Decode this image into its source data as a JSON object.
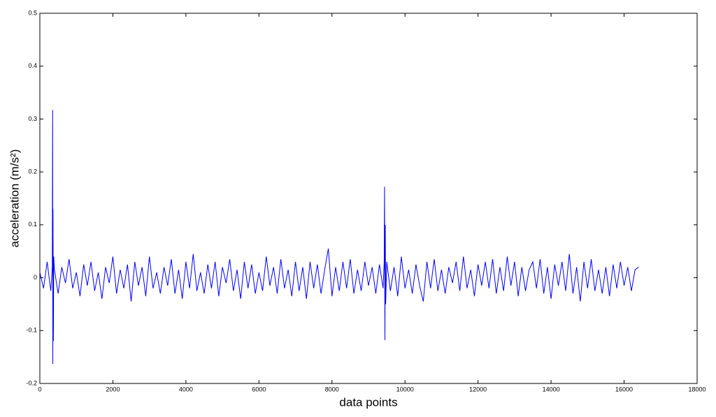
{
  "chart_data": {
    "type": "line",
    "xlabel": "data points",
    "ylabel": "acceleration (m/s²)",
    "xlim": [
      0,
      18000
    ],
    "xticks": [
      0,
      2000,
      4000,
      6000,
      8000,
      10000,
      12000,
      14000,
      16000,
      18000
    ],
    "ylim": [
      -0.2,
      0.5
    ],
    "yticks": [
      -0.2,
      -0.1,
      0,
      0.1,
      0.2,
      0.3,
      0.4,
      0.5
    ],
    "grid": false,
    "series": [
      {
        "color": "#0000ff",
        "x": [
          0,
          100,
          200,
          300,
          340,
          350,
          355,
          360,
          370,
          380,
          400,
          500,
          600,
          700,
          800,
          900,
          1000,
          1100,
          1200,
          1300,
          1400,
          1500,
          1600,
          1700,
          1800,
          1900,
          2000,
          2100,
          2200,
          2300,
          2400,
          2500,
          2600,
          2700,
          2800,
          2900,
          3000,
          3100,
          3200,
          3300,
          3400,
          3500,
          3600,
          3700,
          3800,
          3900,
          4000,
          4100,
          4200,
          4300,
          4400,
          4500,
          4600,
          4700,
          4800,
          4900,
          5000,
          5100,
          5200,
          5300,
          5400,
          5500,
          5600,
          5700,
          5800,
          5900,
          6000,
          6100,
          6200,
          6300,
          6400,
          6500,
          6600,
          6700,
          6800,
          6900,
          7000,
          7100,
          7200,
          7300,
          7400,
          7500,
          7600,
          7700,
          7800,
          7900,
          8000,
          8100,
          8200,
          8300,
          8400,
          8500,
          8600,
          8700,
          8800,
          8900,
          9000,
          9100,
          9200,
          9300,
          9400,
          9430,
          9440,
          9450,
          9460,
          9470,
          9500,
          9600,
          9700,
          9800,
          9900,
          10000,
          10100,
          10200,
          10300,
          10400,
          10500,
          10600,
          10700,
          10800,
          10900,
          11000,
          11100,
          11200,
          11300,
          11400,
          11500,
          11600,
          11700,
          11800,
          11900,
          12000,
          12100,
          12200,
          12300,
          12400,
          12500,
          12600,
          12700,
          12800,
          12900,
          13000,
          13100,
          13200,
          13300,
          13400,
          13500,
          13600,
          13700,
          13800,
          13900,
          14000,
          14100,
          14200,
          14300,
          14400,
          14500,
          14600,
          14700,
          14800,
          14900,
          15000,
          15100,
          15200,
          15300,
          15400,
          15500,
          15600,
          15700,
          15800,
          15900,
          16000,
          16100,
          16200,
          16300,
          16400
        ],
        "values": [
          0.01,
          -0.02,
          0.03,
          -0.025,
          0.02,
          0.317,
          -0.163,
          0.13,
          -0.12,
          0.04,
          0.015,
          -0.03,
          0.02,
          -0.01,
          0.035,
          -0.02,
          0.01,
          -0.035,
          0.025,
          -0.015,
          0.03,
          -0.025,
          0.01,
          -0.04,
          0.02,
          -0.01,
          0.04,
          -0.03,
          0.015,
          -0.02,
          0.025,
          -0.045,
          0.03,
          -0.015,
          0.02,
          -0.035,
          0.04,
          -0.02,
          0.01,
          -0.03,
          0.02,
          -0.015,
          0.035,
          -0.03,
          0.015,
          -0.04,
          0.03,
          -0.02,
          0.045,
          -0.025,
          0.01,
          -0.03,
          0.025,
          -0.02,
          0.03,
          -0.035,
          0.02,
          -0.01,
          0.035,
          -0.025,
          0.015,
          -0.04,
          0.03,
          -0.02,
          0.025,
          -0.03,
          0.01,
          -0.025,
          0.04,
          -0.015,
          0.02,
          -0.03,
          0.035,
          -0.02,
          0.015,
          -0.035,
          0.03,
          -0.025,
          0.02,
          -0.04,
          0.03,
          -0.02,
          0.025,
          -0.03,
          0.015,
          0.055,
          -0.035,
          0.02,
          -0.025,
          0.03,
          -0.02,
          0.035,
          -0.03,
          0.015,
          -0.025,
          0.03,
          -0.015,
          0.02,
          -0.03,
          0.025,
          -0.02,
          0.03,
          0.172,
          -0.118,
          0.1,
          -0.05,
          0.03,
          -0.025,
          0.02,
          -0.035,
          0.04,
          -0.02,
          0.015,
          -0.03,
          0.025,
          -0.015,
          -0.045,
          0.03,
          -0.02,
          0.035,
          -0.025,
          0.015,
          -0.03,
          0.02,
          -0.01,
          0.03,
          -0.025,
          0.04,
          -0.02,
          0.015,
          -0.035,
          0.025,
          -0.015,
          0.03,
          -0.02,
          0.035,
          -0.03,
          0.02,
          -0.025,
          0.04,
          -0.015,
          0.03,
          -0.035,
          0.02,
          -0.025,
          0.015,
          0.03,
          -0.02,
          0.035,
          -0.03,
          0.02,
          -0.04,
          0.025,
          -0.015,
          0.03,
          -0.025,
          0.045,
          -0.03,
          0.02,
          -0.045,
          0.03,
          -0.02,
          0.035,
          -0.025,
          0.015,
          -0.03,
          0.02,
          -0.035,
          0.025,
          -0.02,
          0.03,
          -0.015,
          0.02,
          -0.025,
          0.015,
          0.02
        ]
      }
    ]
  }
}
